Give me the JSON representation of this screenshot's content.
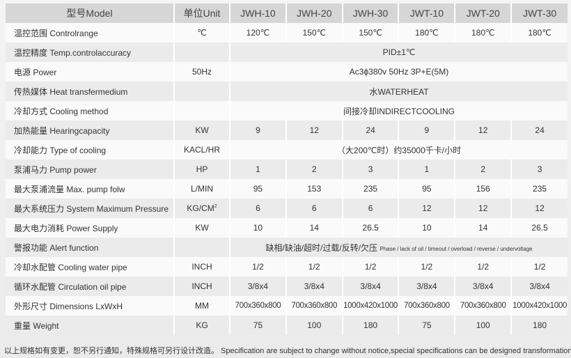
{
  "header": {
    "model": "型号Model",
    "unit": "单位Unit",
    "models": [
      "JWH-10",
      "JWH-20",
      "JWH-30",
      "JWT-10",
      "JWT-20",
      "JWT-30"
    ]
  },
  "rows": [
    {
      "label": "温控范围 Controlrange",
      "unit": "℃",
      "values": [
        "120℃",
        "150℃",
        "150℃",
        "180℃",
        "180℃",
        "180℃"
      ]
    },
    {
      "label": "温控精度 Temp.controlaccuracy",
      "unit": "",
      "span": "PID±1℃"
    },
    {
      "label": "电源 Power",
      "unit": "50Hz",
      "span": "Ac3ϕ380v 50Hz 3P+E(5M)"
    },
    {
      "label": "传热媒体 Heat transfermedium",
      "unit": "",
      "span": "水WATERHEAT"
    },
    {
      "label": "冷却方式 Cooling method",
      "unit": "",
      "span": "间接冷却INDIRECTCOOLING"
    },
    {
      "label": "加热能量 Hearingcapacity",
      "unit": "KW",
      "values": [
        "9",
        "12",
        "24",
        "9",
        "12",
        "24"
      ]
    },
    {
      "label": "冷却能力 Type of cooling",
      "unit": "KACL/HR",
      "span": "（大200℃时）约35000千卡/小时"
    },
    {
      "label": "泵浦马力 Pump power",
      "unit": "HP",
      "values": [
        "1",
        "2",
        "3",
        "1",
        "2",
        "3"
      ]
    },
    {
      "label": "最大泵浦流量 Max. pump folw",
      "unit": "L/MIN",
      "values": [
        "95",
        "153",
        "235",
        "95",
        "156",
        "235"
      ]
    },
    {
      "label": "最大系统压力 System Maximum Pressure",
      "unit": "KG/CM",
      "unit_sup": "2",
      "values": [
        "6",
        "6",
        "6",
        "12",
        "12",
        "12"
      ]
    },
    {
      "label": "最大电力消耗 Power Supply",
      "unit": "KW",
      "values": [
        "10",
        "14",
        "26.5",
        "10",
        "14",
        "26.5"
      ]
    },
    {
      "label": "警报功能 Alert function",
      "unit": "",
      "span": "缺相/缺油/超时/过载/反转/欠压",
      "span_small": "Phase / lack of oil / timeout / overload / reverse / undervoltage"
    },
    {
      "label": "冷却水配管 Cooling water pipe",
      "unit": "INCH",
      "values": [
        "1/2",
        "1/2",
        "1/2",
        "1/2",
        "1/2",
        "1/2"
      ]
    },
    {
      "label": "循环水配管 Circulation oil pipe",
      "unit": "INCH",
      "values": [
        "3/8x4",
        "3/8x4",
        "3/8x4",
        "3/8x4",
        "3/8x4",
        "3/8x4"
      ]
    },
    {
      "label": "外形尺寸 Dimensions LxWxH",
      "unit": "MM",
      "values": [
        "700x360x800",
        "700x360x800",
        "1000x420x1000",
        "700x360x800",
        "700x360x800",
        "1000x420x1000"
      ]
    },
    {
      "label": "重量 Weight",
      "unit": "KG",
      "values": [
        "75",
        "100",
        "180",
        "75",
        "100",
        "180"
      ]
    }
  ],
  "footer": "以上规格如有变更，恕不另行通知，特殊规格可另行设计改造。 Specification are subject to change without notice,special specifications can be designed transformation."
}
